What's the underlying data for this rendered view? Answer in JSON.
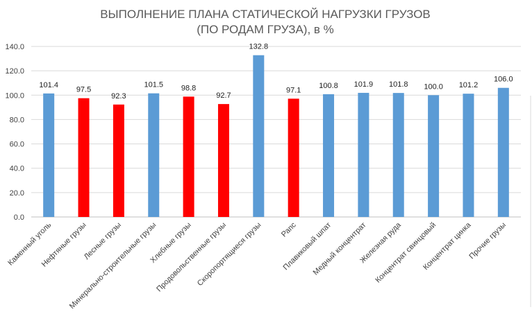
{
  "chart_data": {
    "type": "bar",
    "title_lines": [
      "ВЫПОЛНЕНИЕ ПЛАНА СТАТИЧЕСКОЙ НАГРУЗКИ ГРУЗОВ",
      "(ПО РОДАМ ГРУЗА), в %"
    ],
    "categories": [
      "Каменный уголь",
      "Нефтяные грузы",
      "Лесные  грузы",
      "Минерально-строительные  грузы",
      "Хлебные грузы",
      "Продовольственные  грузы",
      "Скоропортящиеся  грузы",
      "Рапс",
      "Плавиковый шпат",
      "Медный концентрат",
      "Железная руда",
      "Концентрат свинцовый",
      "Концентрат цинка",
      "Прочие  грузы"
    ],
    "values": [
      101.4,
      97.5,
      92.3,
      101.5,
      98.8,
      92.7,
      132.8,
      97.1,
      100.8,
      101.9,
      101.8,
      100.0,
      101.2,
      106.0
    ],
    "data_labels": [
      "101.4",
      "97.5",
      "92.3",
      "101.5",
      "98.8",
      "92.7",
      "132.8",
      "97.1",
      "100.8",
      "101.9",
      "101.8",
      "100.0",
      "101.2",
      "106.0"
    ],
    "bar_colors": [
      "#5b9bd5",
      "#ff0000",
      "#ff0000",
      "#5b9bd5",
      "#ff0000",
      "#ff0000",
      "#5b9bd5",
      "#ff0000",
      "#5b9bd5",
      "#5b9bd5",
      "#5b9bd5",
      "#5b9bd5",
      "#5b9bd5",
      "#5b9bd5"
    ],
    "y_ticks": [
      "0.0",
      "20.0",
      "40.0",
      "60.0",
      "80.0",
      "100.0",
      "120.0",
      "140.0"
    ],
    "ylim": [
      0,
      140
    ],
    "grid": true,
    "legend": "none"
  }
}
